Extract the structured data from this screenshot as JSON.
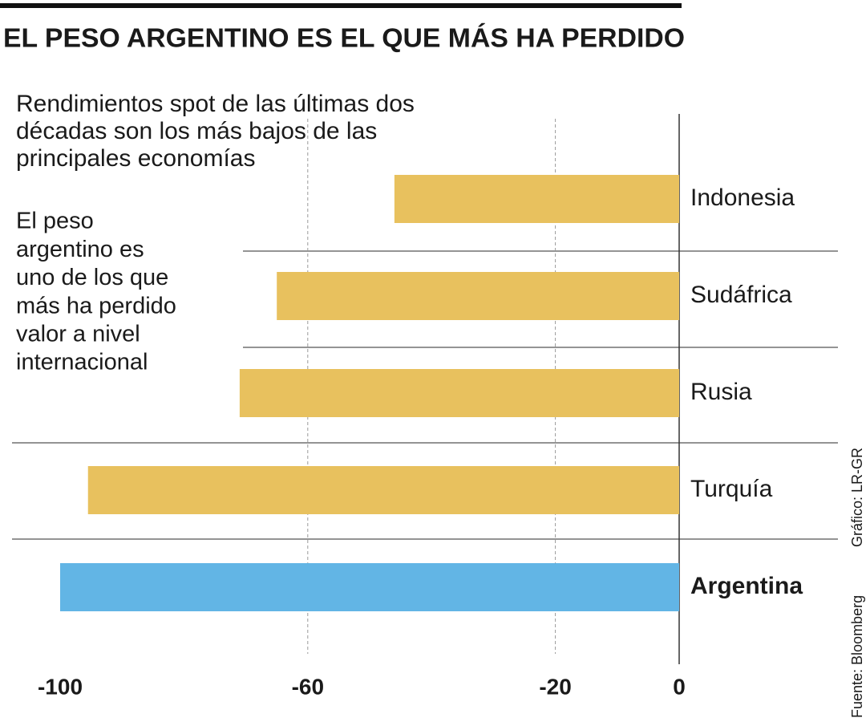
{
  "chart_data": {
    "type": "barh",
    "title": "EL PESO ARGENTINO ES EL QUE MÁS HA PERDIDO",
    "subtitle": [
      "Rendimientos spot de las últimas dos",
      "décadas son los más bajos de las",
      "principales economías"
    ],
    "annotation": [
      "El peso",
      "argentino es",
      "uno de los que",
      "más ha perdido",
      "valor a nivel",
      "internacional"
    ],
    "categories": [
      "Indonesia",
      "Sudáfrica",
      "Rusia",
      "Turquía",
      "Argentina"
    ],
    "values": [
      -46,
      -65,
      -71,
      -95.5,
      -100
    ],
    "colors": [
      "#e8c15e",
      "#e8c15e",
      "#e8c15e",
      "#e8c15e",
      "#62b5e5"
    ],
    "highlight_category": "Argentina",
    "xlim": [
      -100,
      0
    ],
    "xticks": [
      -100,
      -60,
      -20,
      0
    ],
    "grid": true,
    "source": "Fuente: Bloomberg",
    "credit": "Gráfico: LR-GR"
  }
}
